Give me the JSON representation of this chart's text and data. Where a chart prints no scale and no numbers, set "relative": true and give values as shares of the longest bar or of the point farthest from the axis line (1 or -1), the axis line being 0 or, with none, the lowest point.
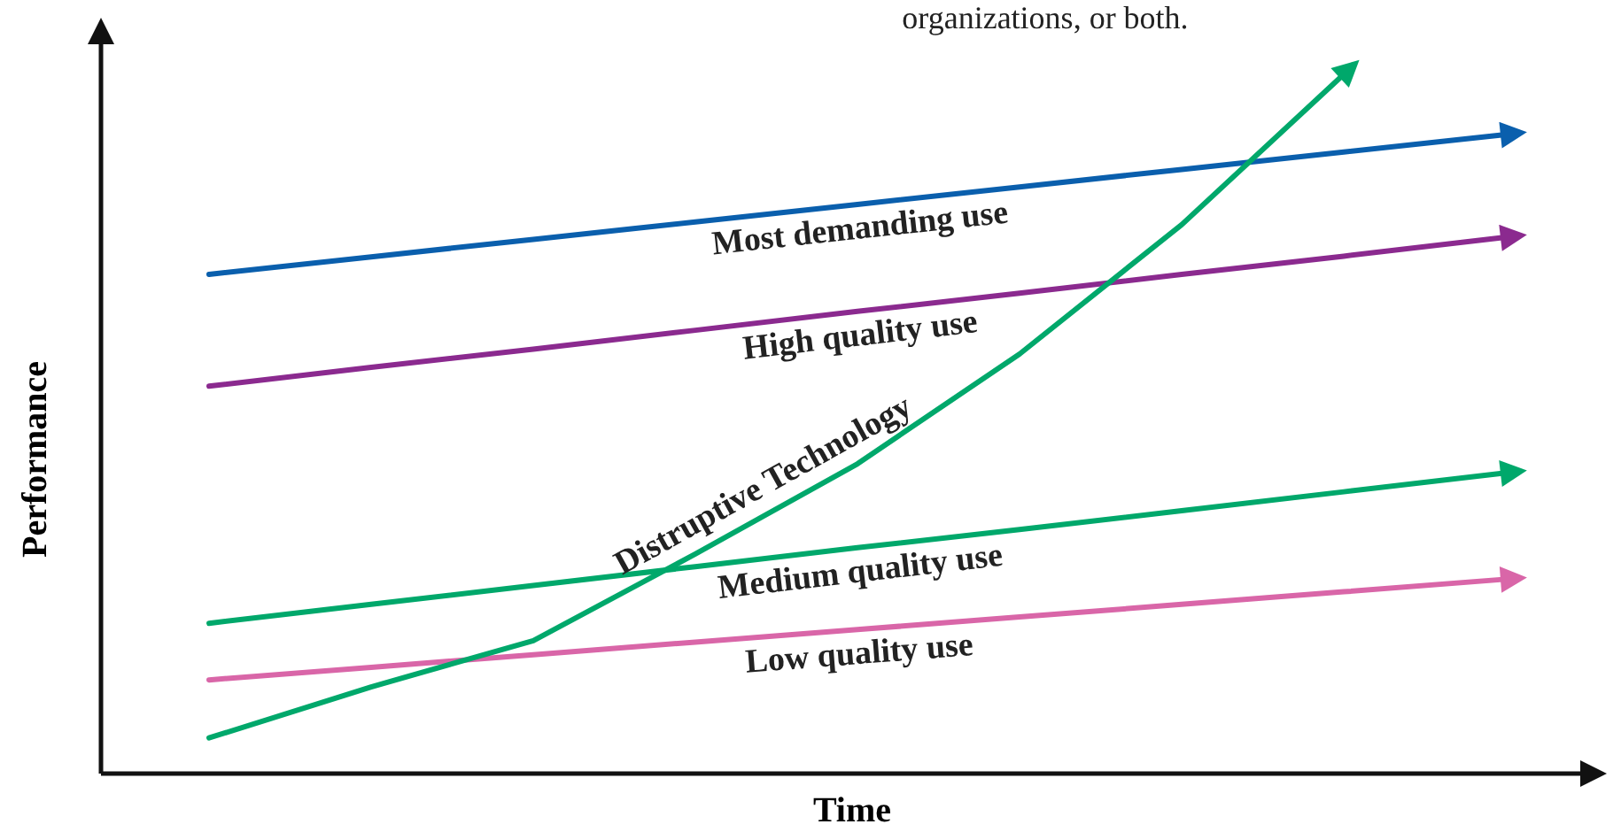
{
  "chart_data": {
    "type": "line",
    "relative": true,
    "xlabel": "Time",
    "ylabel": "Performance",
    "marker": "none",
    "line_style": "solid",
    "annotations": [
      "organizations, or both."
    ],
    "categories": [
      null,
      null,
      null,
      null,
      null,
      null,
      null,
      null,
      null
    ],
    "series": [
      {
        "name": "Most demanding use",
        "color": "#0a5fad",
        "values": [
          0.714,
          0.739,
          0.764,
          0.789,
          0.814,
          0.839,
          0.864,
          0.889,
          0.914
        ]
      },
      {
        "name": "High quality use",
        "color": "#8b2a8f",
        "values": [
          0.554,
          0.581,
          0.607,
          0.634,
          0.661,
          0.687,
          0.714,
          0.74,
          0.767
        ]
      },
      {
        "name": "Medium quality use",
        "color": "#00a86b",
        "values": [
          0.215,
          0.242,
          0.269,
          0.296,
          0.323,
          0.349,
          0.376,
          0.403,
          0.43
        ]
      },
      {
        "name": "Low quality use",
        "color": "#d966a8",
        "values": [
          0.134,
          0.152,
          0.17,
          0.188,
          0.206,
          0.224,
          0.242,
          0.26,
          0.278
        ]
      },
      {
        "name": "Distruptive Technology",
        "color": "#00a86b",
        "values": [
          0.051,
          0.124,
          0.19,
          0.314,
          0.443,
          0.6,
          0.785,
          1.0,
          null
        ]
      }
    ]
  }
}
